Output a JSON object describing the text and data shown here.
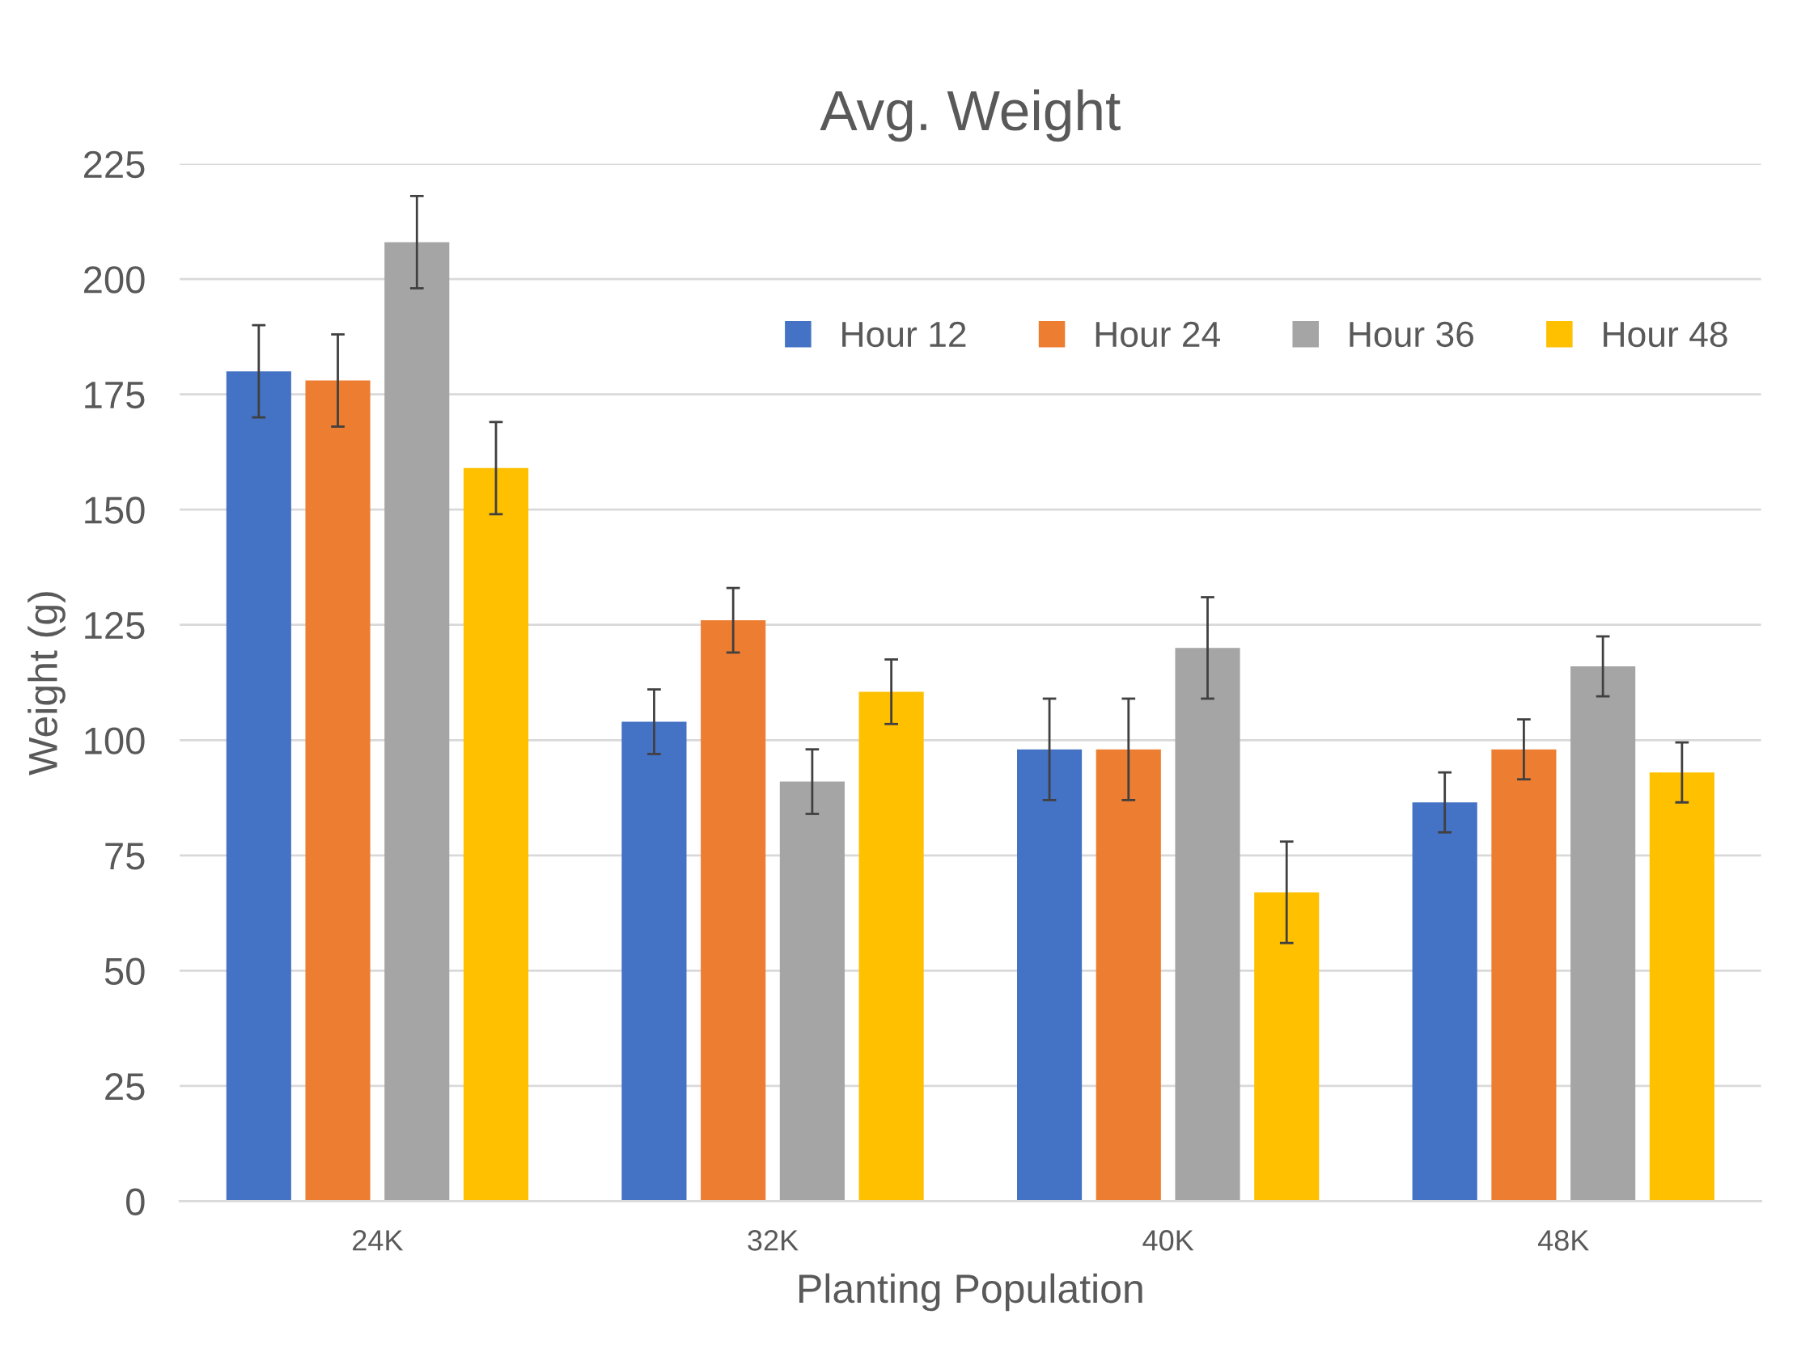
{
  "chart_data": {
    "type": "bar",
    "title": "Avg. Weight",
    "xlabel": "Planting Population",
    "ylabel": "Weight (g)",
    "categories": [
      "24K",
      "32K",
      "40K",
      "48K"
    ],
    "series": [
      {
        "name": "Hour 12",
        "color": "#4472c4",
        "values": [
          180,
          104,
          98,
          86.5
        ],
        "errors": [
          10,
          7,
          11,
          6.5
        ]
      },
      {
        "name": "Hour 24",
        "color": "#ed7d31",
        "values": [
          178,
          126,
          98,
          98
        ],
        "errors": [
          10,
          7,
          11,
          6.5
        ]
      },
      {
        "name": "Hour 36",
        "color": "#a5a5a5",
        "values": [
          208,
          91,
          120,
          116
        ],
        "errors": [
          10,
          7,
          11,
          6.5
        ]
      },
      {
        "name": "Hour 48",
        "color": "#ffc000",
        "values": [
          159,
          110.5,
          67,
          93
        ],
        "errors": [
          10,
          7,
          11,
          6.5
        ]
      }
    ],
    "ylim": [
      0,
      225
    ],
    "yticks": [
      0,
      25,
      50,
      75,
      100,
      125,
      150,
      175,
      200,
      225
    ],
    "grid": "y",
    "legend": "top right"
  }
}
